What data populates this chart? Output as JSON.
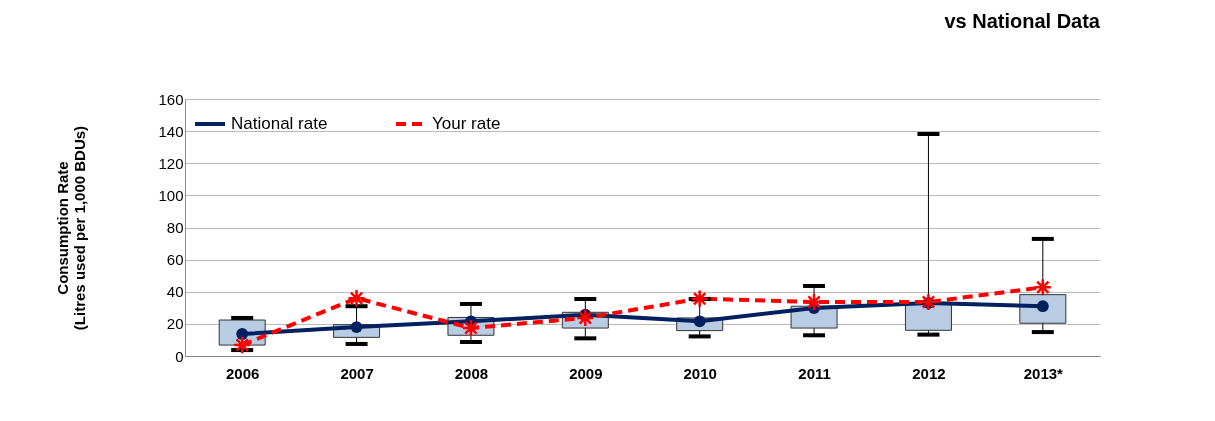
{
  "chart_data": {
    "type": "bar",
    "title": "vs National Data",
    "ylabel": "Consumption Rate\n(Litres used per 1,000 BDUs)",
    "categories": [
      "2006",
      "2007",
      "2008",
      "2009",
      "2010",
      "2011",
      "2012",
      "2013*"
    ],
    "series": [
      {
        "color": "#b8cce4",
        "base": [
          6.8,
          11.6,
          12.9,
          17.4,
          15.8,
          17.4,
          16.0,
          20.4
        ],
        "values": [
          15.6,
          7.9,
          11.1,
          9.8,
          7.9,
          13.6,
          16.4,
          17.8
        ],
        "errors": [
          [
            3.7,
            23.7
          ],
          [
            7.5,
            31
          ],
          [
            8.7,
            32.4
          ],
          [
            11,
            35.5
          ],
          [
            12.2,
            35.5
          ],
          [
            12.9,
            43.6
          ],
          [
            13.3,
            138.2
          ],
          [
            14.9,
            72.9
          ]
        ]
      },
      {
        "type": "line",
        "name": "National rate",
        "color": "#002060",
        "marker": "circle",
        "line_style": "solid",
        "values": [
          13.7,
          18,
          21.6,
          25.7,
          21.6,
          29.9,
          33,
          31
        ]
      },
      {
        "type": "line",
        "name": "Your rate",
        "color": "#ff0000",
        "marker": "cross",
        "line_style": "dashed",
        "values": [
          6.8,
          36,
          17.4,
          23.7,
          35.7,
          33.6,
          33.6,
          42.8
        ]
      }
    ],
    "ylim": [
      0,
      160
    ],
    "yticks": [
      0,
      20,
      40,
      60,
      80,
      100,
      120,
      140,
      160
    ],
    "grid": "y",
    "legend": "top left"
  }
}
